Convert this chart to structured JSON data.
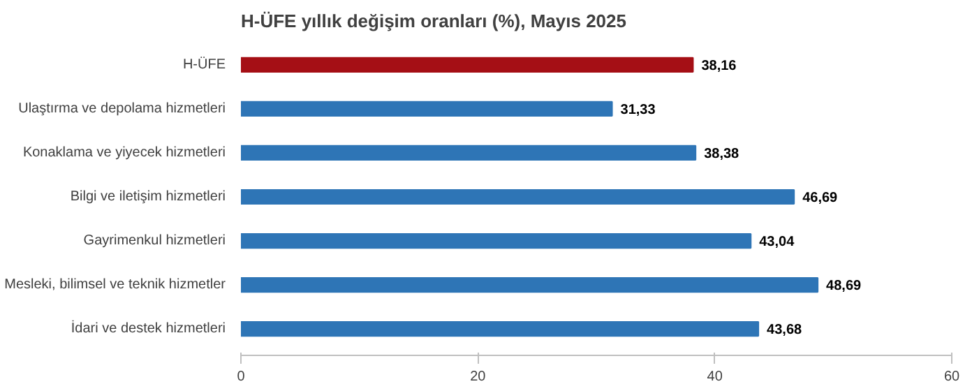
{
  "chart_data": {
    "type": "bar",
    "orientation": "horizontal",
    "title": "H-ÜFE yıllık değişim oranları (%), Mayıs 2025",
    "categories": [
      "H-ÜFE",
      "Ulaştırma ve depolama hizmetleri",
      "Konaklama ve yiyecek hizmetleri",
      "Bilgi ve iletişim hizmetleri",
      "Gayrimenkul hizmetleri",
      "Mesleki, bilimsel ve teknik hizmetler",
      "İdari ve destek hizmetleri"
    ],
    "values": [
      38.16,
      31.33,
      38.38,
      46.69,
      43.04,
      48.69,
      43.68
    ],
    "value_labels": [
      "38,16",
      "31,33",
      "38,38",
      "46,69",
      "43,04",
      "48,69",
      "43,68"
    ],
    "colors": [
      "#a50f15",
      "#2e75b6",
      "#2e75b6",
      "#2e75b6",
      "#2e75b6",
      "#2e75b6",
      "#2e75b6"
    ],
    "xlim": [
      0,
      60
    ],
    "xticks": [
      0,
      20,
      40,
      60
    ],
    "grid": false
  }
}
